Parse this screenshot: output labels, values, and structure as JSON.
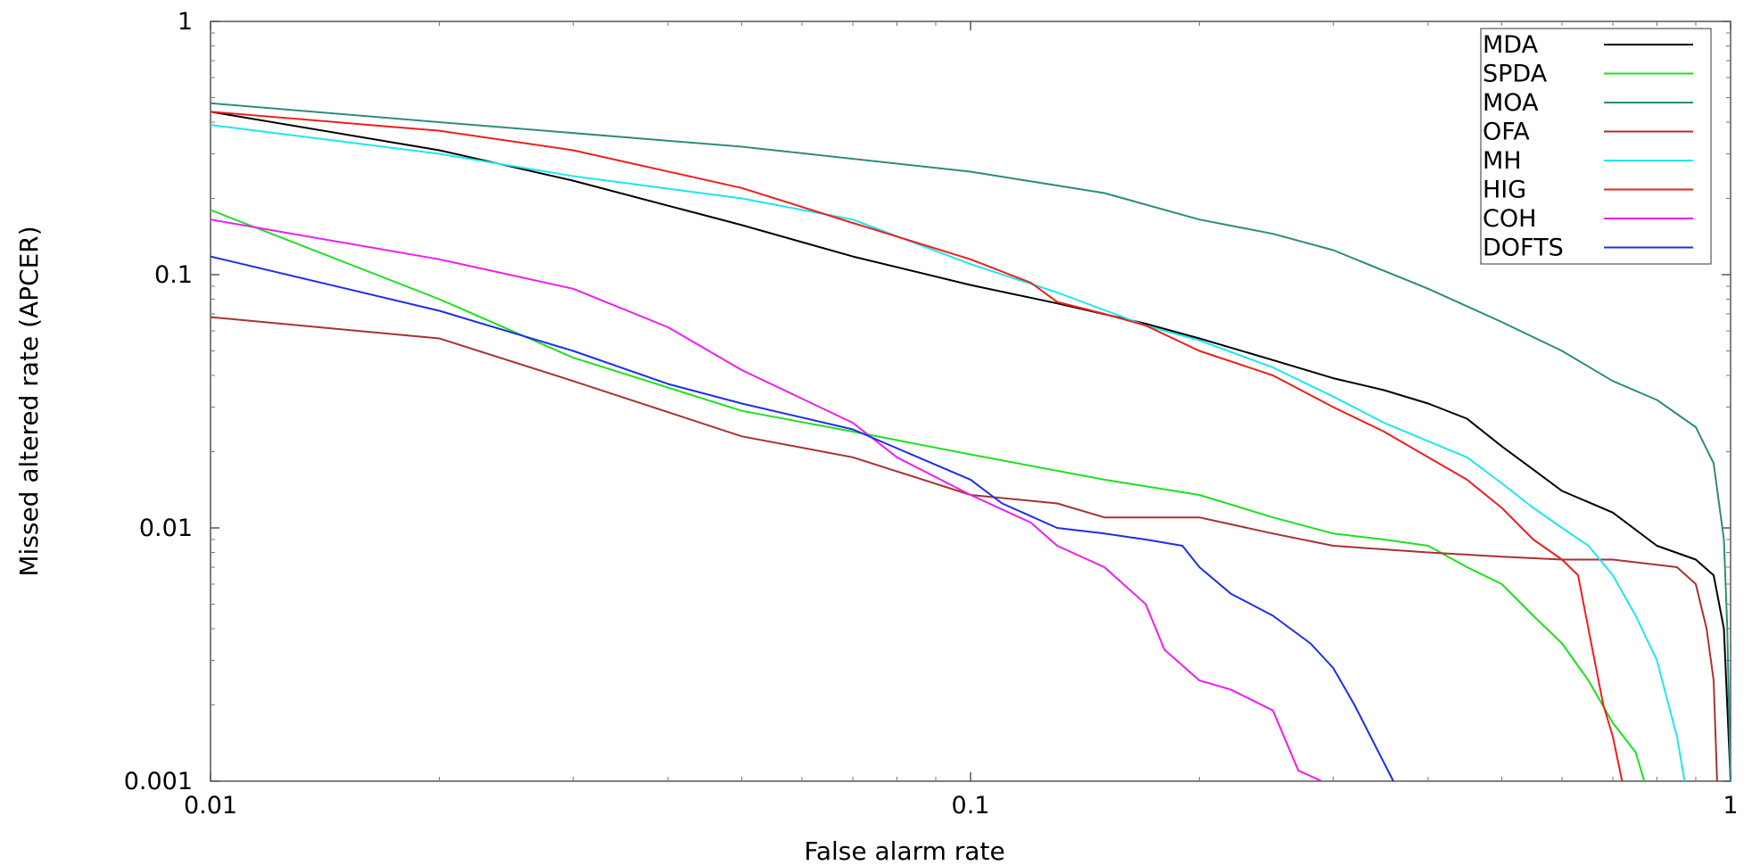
{
  "chart_data": {
    "type": "line",
    "title": "",
    "xlabel": "False alarm rate",
    "ylabel": "Missed altered rate (APCER)",
    "x_scale": "log",
    "y_scale": "log",
    "xlim": [
      0.01,
      1
    ],
    "ylim": [
      0.001,
      1
    ],
    "x_ticks": [
      "0.01",
      "0.1",
      "1"
    ],
    "y_ticks": [
      "0.001",
      "0.01",
      "0.1",
      "1"
    ],
    "grid": false,
    "legend_position": "top-right",
    "series": [
      {
        "name": "MDA",
        "color": "#000000",
        "points": [
          [
            0.01,
            0.44
          ],
          [
            0.02,
            0.31
          ],
          [
            0.03,
            0.235
          ],
          [
            0.05,
            0.157
          ],
          [
            0.07,
            0.118
          ],
          [
            0.1,
            0.091
          ],
          [
            0.13,
            0.077
          ],
          [
            0.17,
            0.064
          ],
          [
            0.2,
            0.056
          ],
          [
            0.25,
            0.046
          ],
          [
            0.3,
            0.039
          ],
          [
            0.35,
            0.035
          ],
          [
            0.4,
            0.031
          ],
          [
            0.45,
            0.027
          ],
          [
            0.5,
            0.021
          ],
          [
            0.55,
            0.017
          ],
          [
            0.6,
            0.014
          ],
          [
            0.7,
            0.0115
          ],
          [
            0.8,
            0.0085
          ],
          [
            0.9,
            0.0075
          ],
          [
            0.95,
            0.0065
          ],
          [
            0.98,
            0.004
          ],
          [
            1.0,
            0.001
          ]
        ]
      },
      {
        "name": "SPDA",
        "color": "#1ee01e",
        "points": [
          [
            0.01,
            0.18
          ],
          [
            0.02,
            0.08
          ],
          [
            0.03,
            0.047
          ],
          [
            0.05,
            0.029
          ],
          [
            0.07,
            0.024
          ],
          [
            0.1,
            0.0195
          ],
          [
            0.15,
            0.0155
          ],
          [
            0.2,
            0.0135
          ],
          [
            0.25,
            0.011
          ],
          [
            0.3,
            0.0095
          ],
          [
            0.35,
            0.009
          ],
          [
            0.4,
            0.0085
          ],
          [
            0.45,
            0.007
          ],
          [
            0.5,
            0.006
          ],
          [
            0.55,
            0.0045
          ],
          [
            0.6,
            0.0035
          ],
          [
            0.65,
            0.0025
          ],
          [
            0.7,
            0.0017
          ],
          [
            0.75,
            0.0013
          ],
          [
            0.77,
            0.001
          ]
        ]
      },
      {
        "name": "MOA",
        "color": "#2e8b7e",
        "points": [
          [
            0.01,
            0.475
          ],
          [
            0.02,
            0.4
          ],
          [
            0.05,
            0.32
          ],
          [
            0.1,
            0.255
          ],
          [
            0.15,
            0.21
          ],
          [
            0.2,
            0.165
          ],
          [
            0.25,
            0.145
          ],
          [
            0.3,
            0.125
          ],
          [
            0.4,
            0.088
          ],
          [
            0.5,
            0.065
          ],
          [
            0.6,
            0.05
          ],
          [
            0.7,
            0.038
          ],
          [
            0.8,
            0.032
          ],
          [
            0.9,
            0.025
          ],
          [
            0.95,
            0.018
          ],
          [
            0.98,
            0.009
          ],
          [
            0.99,
            0.004
          ],
          [
            1.0,
            0.001
          ]
        ]
      },
      {
        "name": "OFA",
        "color": "#a83232",
        "points": [
          [
            0.01,
            0.068
          ],
          [
            0.02,
            0.056
          ],
          [
            0.03,
            0.038
          ],
          [
            0.05,
            0.023
          ],
          [
            0.07,
            0.019
          ],
          [
            0.1,
            0.0135
          ],
          [
            0.13,
            0.0125
          ],
          [
            0.15,
            0.011
          ],
          [
            0.2,
            0.011
          ],
          [
            0.25,
            0.0095
          ],
          [
            0.3,
            0.0085
          ],
          [
            0.4,
            0.008
          ],
          [
            0.5,
            0.0077
          ],
          [
            0.6,
            0.0075
          ],
          [
            0.7,
            0.0075
          ],
          [
            0.85,
            0.007
          ],
          [
            0.9,
            0.006
          ],
          [
            0.93,
            0.004
          ],
          [
            0.95,
            0.0025
          ],
          [
            0.96,
            0.001
          ]
        ]
      },
      {
        "name": "MH",
        "color": "#1ee6ee",
        "points": [
          [
            0.01,
            0.39
          ],
          [
            0.02,
            0.3
          ],
          [
            0.03,
            0.245
          ],
          [
            0.05,
            0.2
          ],
          [
            0.07,
            0.165
          ],
          [
            0.1,
            0.11
          ],
          [
            0.13,
            0.085
          ],
          [
            0.17,
            0.063
          ],
          [
            0.2,
            0.055
          ],
          [
            0.25,
            0.043
          ],
          [
            0.3,
            0.033
          ],
          [
            0.35,
            0.026
          ],
          [
            0.4,
            0.022
          ],
          [
            0.45,
            0.019
          ],
          [
            0.5,
            0.015
          ],
          [
            0.55,
            0.012
          ],
          [
            0.6,
            0.01
          ],
          [
            0.65,
            0.0085
          ],
          [
            0.7,
            0.0065
          ],
          [
            0.75,
            0.0045
          ],
          [
            0.8,
            0.003
          ],
          [
            0.85,
            0.0015
          ],
          [
            0.87,
            0.001
          ]
        ]
      },
      {
        "name": "HIG",
        "color": "#ee1e1e",
        "points": [
          [
            0.01,
            0.44
          ],
          [
            0.02,
            0.37
          ],
          [
            0.03,
            0.31
          ],
          [
            0.05,
            0.22
          ],
          [
            0.07,
            0.16
          ],
          [
            0.1,
            0.115
          ],
          [
            0.12,
            0.093
          ],
          [
            0.13,
            0.078
          ],
          [
            0.15,
            0.07
          ],
          [
            0.17,
            0.063
          ],
          [
            0.2,
            0.05
          ],
          [
            0.25,
            0.04
          ],
          [
            0.3,
            0.03
          ],
          [
            0.35,
            0.024
          ],
          [
            0.4,
            0.019
          ],
          [
            0.45,
            0.0155
          ],
          [
            0.5,
            0.012
          ],
          [
            0.55,
            0.009
          ],
          [
            0.6,
            0.0075
          ],
          [
            0.63,
            0.0065
          ],
          [
            0.65,
            0.004
          ],
          [
            0.68,
            0.002
          ],
          [
            0.7,
            0.0015
          ],
          [
            0.72,
            0.001
          ]
        ]
      },
      {
        "name": "COH",
        "color": "#ee1eee",
        "points": [
          [
            0.01,
            0.165
          ],
          [
            0.02,
            0.115
          ],
          [
            0.03,
            0.088
          ],
          [
            0.04,
            0.062
          ],
          [
            0.05,
            0.042
          ],
          [
            0.07,
            0.026
          ],
          [
            0.08,
            0.019
          ],
          [
            0.1,
            0.0135
          ],
          [
            0.12,
            0.0105
          ],
          [
            0.13,
            0.0085
          ],
          [
            0.15,
            0.007
          ],
          [
            0.17,
            0.005
          ],
          [
            0.18,
            0.0033
          ],
          [
            0.2,
            0.0025
          ],
          [
            0.22,
            0.0023
          ],
          [
            0.25,
            0.0019
          ],
          [
            0.27,
            0.0011
          ],
          [
            0.29,
            0.001
          ]
        ]
      },
      {
        "name": "DOFTS",
        "color": "#1e2ee6",
        "points": [
          [
            0.01,
            0.118
          ],
          [
            0.02,
            0.072
          ],
          [
            0.03,
            0.05
          ],
          [
            0.04,
            0.037
          ],
          [
            0.05,
            0.031
          ],
          [
            0.07,
            0.0245
          ],
          [
            0.1,
            0.0155
          ],
          [
            0.11,
            0.0125
          ],
          [
            0.13,
            0.01
          ],
          [
            0.15,
            0.0095
          ],
          [
            0.17,
            0.009
          ],
          [
            0.19,
            0.0085
          ],
          [
            0.2,
            0.007
          ],
          [
            0.22,
            0.0055
          ],
          [
            0.25,
            0.0045
          ],
          [
            0.28,
            0.0035
          ],
          [
            0.3,
            0.0028
          ],
          [
            0.32,
            0.002
          ],
          [
            0.34,
            0.0014
          ],
          [
            0.36,
            0.001
          ]
        ]
      }
    ]
  }
}
